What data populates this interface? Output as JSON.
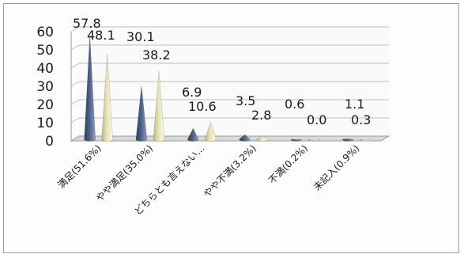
{
  "chart_data": {
    "type": "bar",
    "title": "",
    "xlabel": "",
    "ylabel": "",
    "ylim": [
      0,
      60
    ],
    "yticks": [
      0,
      10,
      20,
      30,
      40,
      50,
      60
    ],
    "grid": true,
    "legend": "none",
    "categories": [
      "満足(51.6%)",
      "やや満足(35.0%)",
      "どちらとも言えない...",
      "やや不満(3.2%)",
      "不満(0.2%)",
      "未記入(0.9%)"
    ],
    "series": [
      {
        "values": [
          57.8,
          30.1,
          6.9,
          3.5,
          0.6,
          1.1
        ],
        "color": "#4a5f86"
      },
      {
        "values": [
          48.1,
          38.2,
          10.6,
          2.8,
          0.0,
          0.3
        ],
        "color": "#e6e4b4"
      }
    ],
    "colors": {
      "grid": "#bdbdbd",
      "floor": "#d9d9d9",
      "axis": "#9a9a9a"
    }
  }
}
